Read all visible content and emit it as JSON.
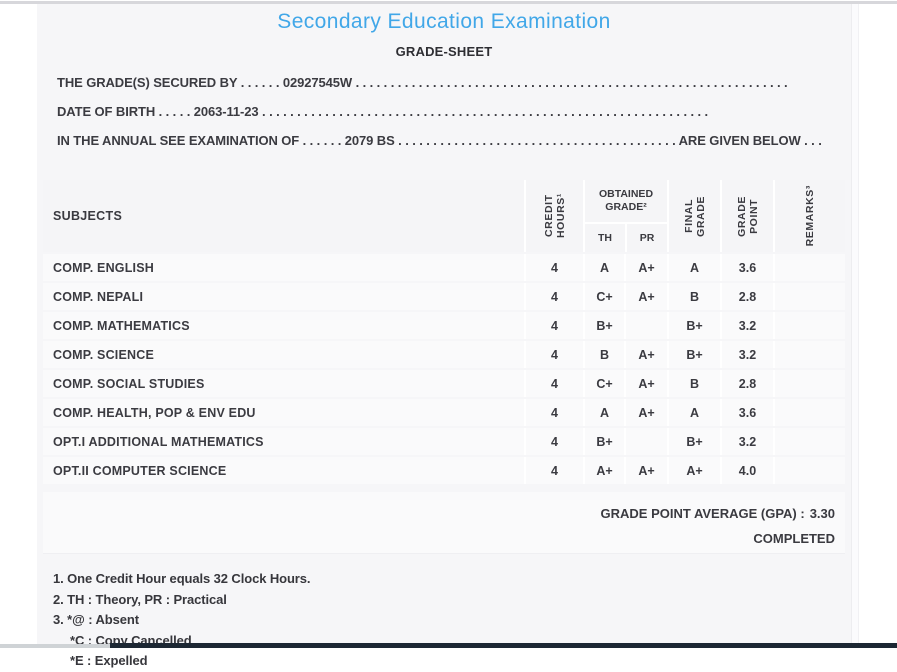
{
  "header": {
    "title": "Secondary Education Examination",
    "subtitle": "GRADE-SHEET"
  },
  "info_lines": [
    "THE GRADE(S) SECURED BY . . . . . . 02927545W . . . . . . . . . . . . . . . . . . . . . . . . . . . . . . . . . . . . . . . . . . . . . . . . . . . . . . . . . . . . . .",
    "DATE OF BIRTH . . . . . 2063-11-23 . . . . . . . . . . . . . . . . . . . . . . . . . . . . . . . . . . . . . . . . . . . . . . . . . . . . . . . . . . . . . . . .",
    "IN THE ANNUAL SEE EXAMINATION OF . . . . . . 2079 BS . . . . . . . . . . . . . . . . . . . . . . . . . . . . . . . . . . . . . . . . ARE GIVEN BELOW . . ."
  ],
  "student": {
    "symbol_number": "02927545W",
    "date_of_birth": "2063-11-23",
    "examination_year": "2079 BS"
  },
  "table": {
    "headers": {
      "subjects": "SUBJECTS",
      "credit_hours": "CREDIT\nHOURS¹",
      "obtained_grade": "OBTAINED\nGRADE²",
      "th": "TH",
      "pr": "PR",
      "final_grade": "FINAL\nGRADE",
      "grade_point": "GRADE\nPOINT",
      "remarks": "REMARKS³"
    },
    "rows": [
      {
        "subject": "COMP. ENGLISH",
        "credit_hours": "4",
        "th": "A",
        "pr": "A+",
        "final_grade": "A",
        "grade_point": "3.6",
        "remarks": ""
      },
      {
        "subject": "COMP. NEPALI",
        "credit_hours": "4",
        "th": "C+",
        "pr": "A+",
        "final_grade": "B",
        "grade_point": "2.8",
        "remarks": ""
      },
      {
        "subject": "COMP. MATHEMATICS",
        "credit_hours": "4",
        "th": "B+",
        "pr": "",
        "final_grade": "B+",
        "grade_point": "3.2",
        "remarks": ""
      },
      {
        "subject": "COMP. SCIENCE",
        "credit_hours": "4",
        "th": "B",
        "pr": "A+",
        "final_grade": "B+",
        "grade_point": "3.2",
        "remarks": ""
      },
      {
        "subject": "COMP. SOCIAL STUDIES",
        "credit_hours": "4",
        "th": "C+",
        "pr": "A+",
        "final_grade": "B",
        "grade_point": "2.8",
        "remarks": ""
      },
      {
        "subject": "COMP. HEALTH, POP & ENV EDU",
        "credit_hours": "4",
        "th": "A",
        "pr": "A+",
        "final_grade": "A",
        "grade_point": "3.6",
        "remarks": ""
      },
      {
        "subject": "OPT.I ADDITIONAL MATHEMATICS",
        "credit_hours": "4",
        "th": "B+",
        "pr": "",
        "final_grade": "B+",
        "grade_point": "3.2",
        "remarks": ""
      },
      {
        "subject": "OPT.II COMPUTER SCIENCE",
        "credit_hours": "4",
        "th": "A+",
        "pr": "A+",
        "final_grade": "A+",
        "grade_point": "4.0",
        "remarks": ""
      }
    ]
  },
  "summary": {
    "gpa_label": "GRADE POINT AVERAGE (GPA) :",
    "gpa_value": "3.30",
    "status": "COMPLETED"
  },
  "footnotes": [
    "1. One Credit Hour equals 32 Clock Hours.",
    "2. TH : Theory, PR : Practical",
    "3. *@ : Absent",
    "*C : Copy Cancelled",
    "*E : Expelled"
  ],
  "colors": {
    "title_blue": "#41a7e8",
    "text_dark": "#3a3a40",
    "panel_bg": "#f6f6f8",
    "cell_bg": "#fafafb",
    "top_border": "#d7d7db",
    "footer_bar_dark": "#1c2733",
    "footer_bar_light": "#cfd3d6"
  }
}
